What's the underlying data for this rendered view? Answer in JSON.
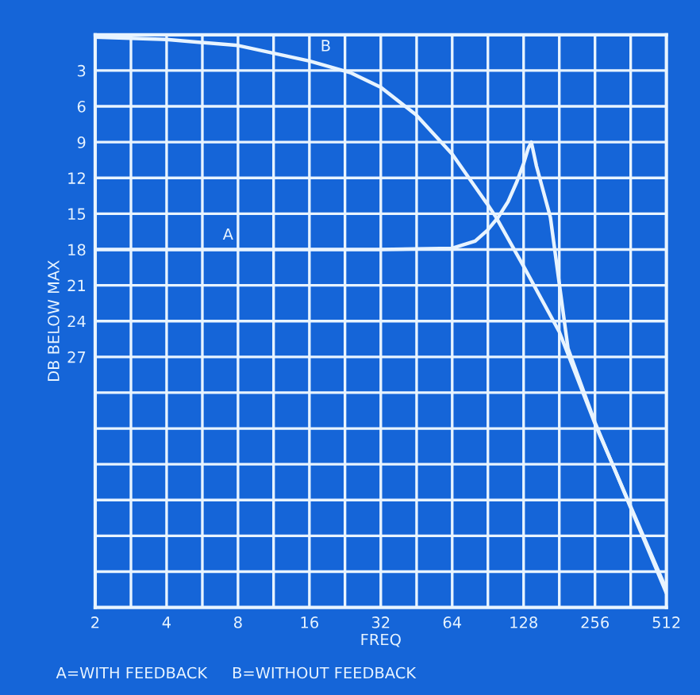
{
  "chart_data": {
    "type": "line",
    "xlabel": "FREQ",
    "ylabel": "DB BELOW MAX",
    "annotations": [
      {
        "text": "A",
        "x": 6.2,
        "y": 18
      },
      {
        "text": "B",
        "x": 16,
        "y": 2.2
      },
      "A=WITH FEEDBACK     B=WITHOUT FEEDBACK"
    ],
    "log": "x",
    "grid": true,
    "legend": false,
    "marker": "none",
    "line_style": "solid",
    "xlim": [
      2,
      512
    ],
    "ylim": [
      48,
      0
    ],
    "xticks": [
      2,
      {
        "value": 2.83,
        "label": null
      },
      4,
      {
        "value": 5.66,
        "label": null
      },
      8,
      {
        "value": 11.3,
        "label": null
      },
      16,
      {
        "value": 22.6,
        "label": null
      },
      32,
      {
        "value": 45.3,
        "label": null
      },
      64,
      {
        "value": 90.5,
        "label": null
      },
      128,
      {
        "value": 181,
        "label": null
      },
      256,
      {
        "value": 362,
        "label": null
      },
      512
    ],
    "yticks": [
      {
        "value": 0,
        "label": null
      },
      3,
      6,
      9,
      12,
      15,
      18,
      21,
      24,
      27,
      {
        "value": 30,
        "label": null
      },
      {
        "value": 33,
        "label": null
      },
      {
        "value": 36,
        "label": null
      },
      {
        "value": 39,
        "label": null
      },
      {
        "value": 42,
        "label": null
      },
      {
        "value": 45,
        "label": null
      },
      {
        "value": 48,
        "label": null
      }
    ],
    "series": [
      {
        "color": "#e8f4ff",
        "x": [
          2,
          8,
          32,
          64,
          80,
          90,
          100,
          110,
          120,
          128,
          134,
          138,
          145,
          166,
          197,
          256,
          512
        ],
        "values": [
          18,
          18,
          18,
          17.9,
          17.3,
          16.4,
          15.3,
          14.0,
          12.3,
          10.8,
          9.5,
          9.0,
          11.0,
          15.3,
          26.3,
          32.5,
          46.8
        ]
      },
      {
        "color": "#e8f4ff",
        "x": [
          2,
          4,
          8,
          16,
          24,
          32,
          45,
          64,
          90,
          98,
          128,
          181,
          256,
          512
        ],
        "values": [
          0.2,
          0.4,
          0.9,
          2.2,
          3.2,
          4.4,
          6.7,
          10.0,
          14.2,
          15.3,
          19.4,
          24.9,
          32.6,
          46.5
        ]
      }
    ]
  }
}
